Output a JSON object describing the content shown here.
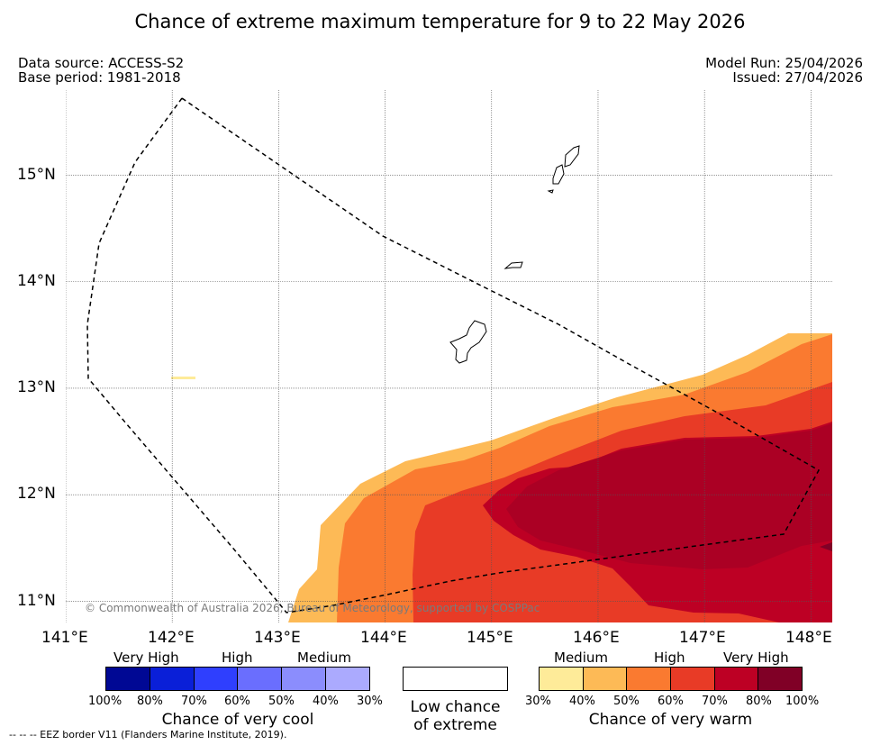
{
  "title": "Chance of extreme maximum temperature for 9 to 22 May 2026",
  "meta": {
    "data_source": "Data source: ACCESS-S2",
    "base_period": "Base period: 1981-2018",
    "model_run": "Model Run: 25/04/2026",
    "issued": "Issued: 27/04/2026"
  },
  "map": {
    "lon_range": [
      141.0,
      148.2
    ],
    "lat_range": [
      10.8,
      15.8
    ],
    "lon_ticks": [
      "141°E",
      "142°E",
      "143°E",
      "144°E",
      "145°E",
      "146°E",
      "147°E",
      "148°E"
    ],
    "lat_ticks": [
      "15°N",
      "14°N",
      "13°N",
      "12°N",
      "11°N"
    ],
    "copyright": "© Commonwealth of Australia 2026, Bureau of Meteorology, supported by COSPPac",
    "islands": [
      "Guam",
      "Rota",
      "Tinian",
      "Saipan"
    ]
  },
  "legend": {
    "cool": {
      "categories": [
        "Very High",
        "High",
        "Medium"
      ],
      "labels": [
        "100%",
        "80%",
        "70%",
        "60%",
        "50%",
        "40%",
        "30%"
      ],
      "colors": [
        "#000894",
        "#0a1fd8",
        "#2f3ffe",
        "#6a6efe",
        "#8b8dfd",
        "#abaafe"
      ],
      "caption": "Chance of very cool"
    },
    "low": {
      "caption_line1": "Low chance",
      "caption_line2": "of extreme"
    },
    "warm": {
      "categories": [
        "Medium",
        "High",
        "Very High"
      ],
      "labels": [
        "30%",
        "40%",
        "50%",
        "60%",
        "70%",
        "80%",
        "100%"
      ],
      "colors": [
        "#feeb99",
        "#fdba56",
        "#fa7a30",
        "#e83b26",
        "#bd0024",
        "#800026"
      ],
      "caption": "Chance of very warm"
    }
  },
  "footnote": "--  --  -- EEZ border V11 (Flanders Marine Institute, 2019)."
}
